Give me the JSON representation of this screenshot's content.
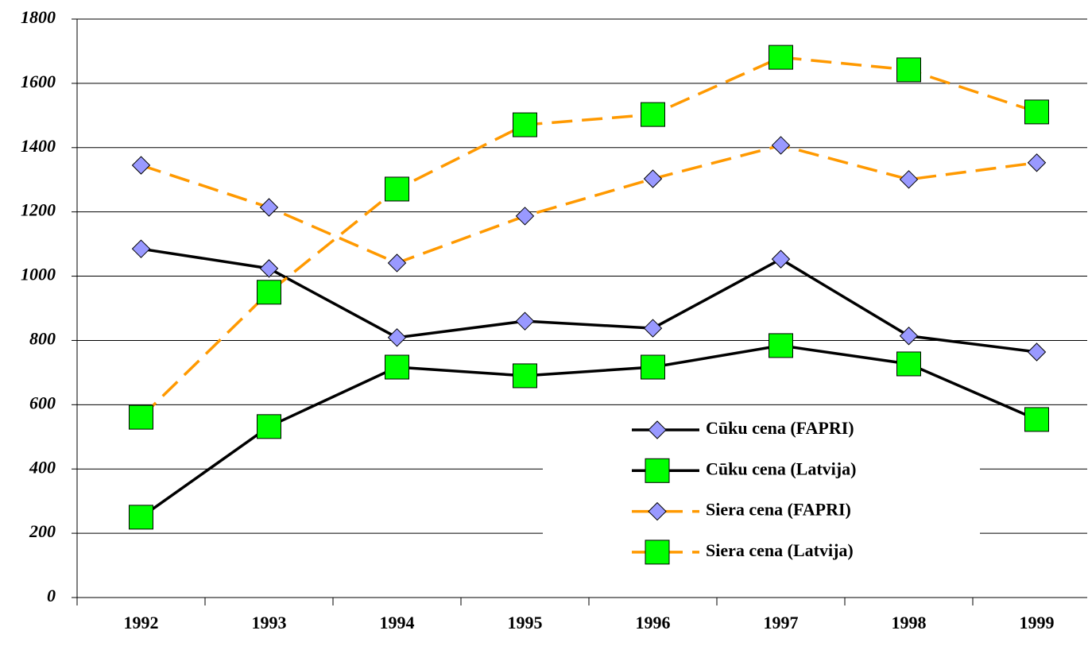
{
  "chart_data": {
    "type": "line",
    "categories": [
      "1992",
      "1993",
      "1994",
      "1995",
      "1996",
      "1997",
      "1998",
      "1999"
    ],
    "series": [
      {
        "name": "Cūku cena (FAPRI)",
        "color": "#000000",
        "dash": false,
        "marker": "diamond",
        "marker_color": "#9999ff",
        "values": [
          1085,
          1024,
          809,
          860,
          838,
          1053,
          814,
          764
        ]
      },
      {
        "name": "Cūku cena (Latvija)",
        "color": "#000000",
        "dash": false,
        "marker": "square",
        "marker_color": "#00ff00",
        "values": [
          250,
          532,
          717,
          690,
          717,
          784,
          727,
          554
        ]
      },
      {
        "name": "Siera cena (FAPRI)",
        "color": "#ff9900",
        "dash": true,
        "marker": "diamond",
        "marker_color": "#9999ff",
        "values": [
          1345,
          1214,
          1041,
          1187,
          1303,
          1407,
          1301,
          1353
        ]
      },
      {
        "name": "Siera cena (Latvija)",
        "color": "#ff9900",
        "dash": true,
        "marker": "square",
        "marker_color": "#00ff00",
        "values": [
          561,
          950,
          1271,
          1471,
          1503,
          1681,
          1642,
          1511
        ]
      }
    ],
    "ylim": [
      0,
      1800
    ],
    "yticks": [
      0,
      200,
      400,
      600,
      800,
      1000,
      1200,
      1400,
      1600,
      1800
    ],
    "grid": true,
    "legend": "right"
  }
}
